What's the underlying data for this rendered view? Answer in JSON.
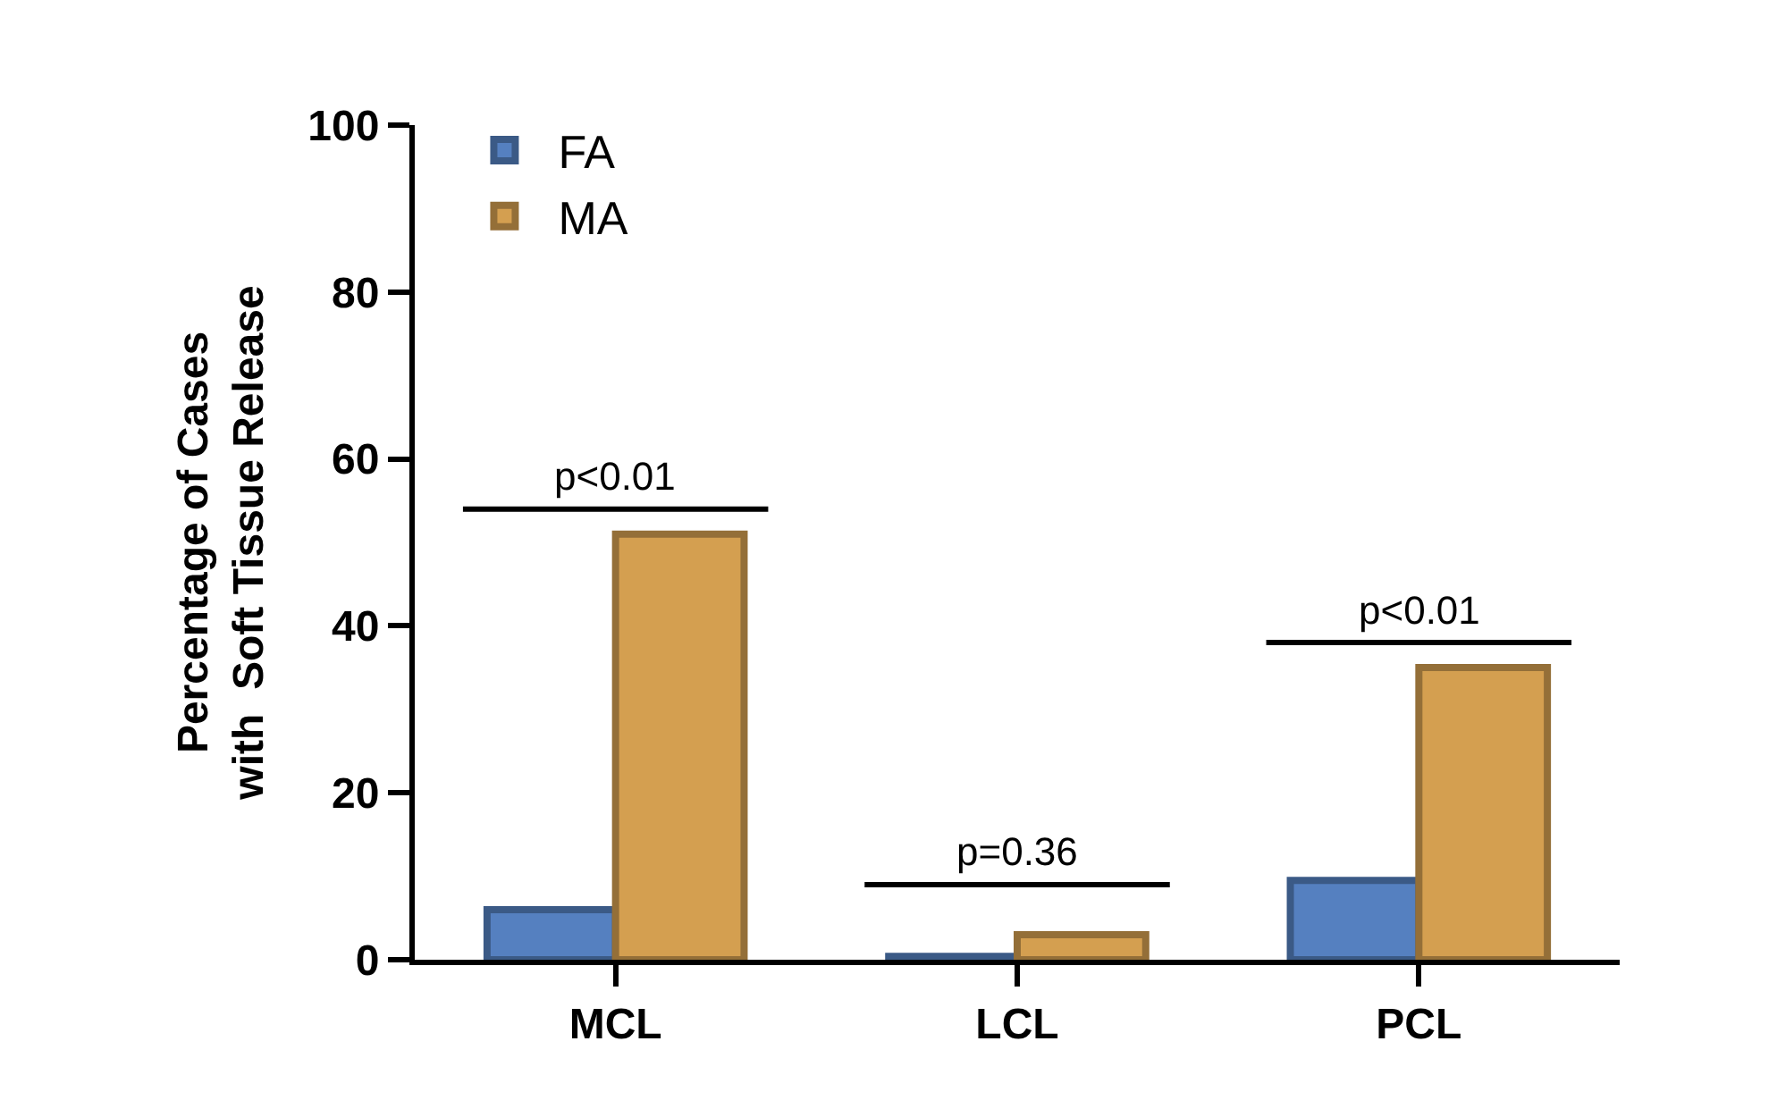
{
  "chart_data": {
    "type": "bar",
    "ylabel": "Percentage of Cases\nwith  Soft Tissue Release",
    "categories": [
      "MCL",
      "LCL",
      "PCL"
    ],
    "series": [
      {
        "name": "FA",
        "color": "#5580c0",
        "values": [
          6,
          0.4,
          9.5
        ]
      },
      {
        "name": "MA",
        "color": "#d49f50",
        "values": [
          51,
          3,
          35
        ]
      }
    ],
    "ylim": [
      0,
      100
    ],
    "yticks": [
      0,
      20,
      40,
      60,
      80,
      100
    ],
    "grid": false,
    "legend": "top left",
    "annotations": [
      "p<0.01",
      "p=0.36",
      "p<0.01"
    ]
  }
}
